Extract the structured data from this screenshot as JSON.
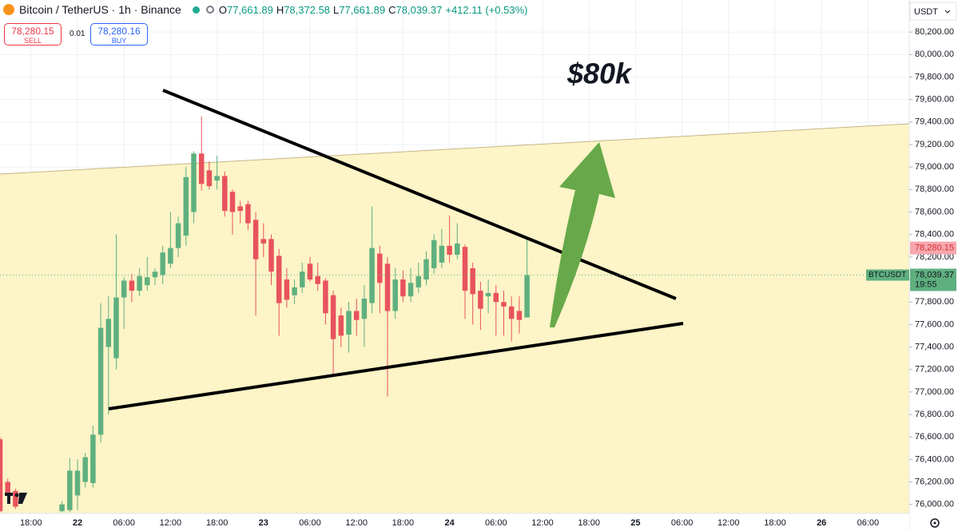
{
  "chart_data": {
    "type": "candlestick",
    "title": "Bitcoin / TetherUS · 1h · Binance",
    "ohlc": [
      {
        "key": "O",
        "value": "77,661.89"
      },
      {
        "key": "H",
        "value": "78,372.58"
      },
      {
        "key": "L",
        "value": "77,661.89"
      },
      {
        "key": "C",
        "value": "78,039.37"
      }
    ],
    "change": "+412.11 (+0.53%)",
    "sell": {
      "price": "78,280.15",
      "label": "SELL"
    },
    "spread": "0.01",
    "buy": {
      "price": "78,280.16",
      "label": "BUY"
    },
    "currency": "USDT",
    "annotation": "$80k",
    "ask_line": {
      "value": 78280.15,
      "label": "78,280.15"
    },
    "last_price": {
      "symbol": "BTCUSDT",
      "label": "78,039.37",
      "countdown": "19:55"
    },
    "up_color": "#5fb07f",
    "down_color": "#e8535d",
    "grid": true,
    "xlim": [
      -10,
      107.32
    ],
    "xticks": [
      {
        "value": -6,
        "label": "18:00"
      },
      {
        "value": 0,
        "label": "22"
      },
      {
        "value": 6,
        "label": "06:00"
      },
      {
        "value": 12,
        "label": "12:00"
      },
      {
        "value": 18,
        "label": "18:00"
      },
      {
        "value": 24,
        "label": "23"
      },
      {
        "value": 30,
        "label": "06:00"
      },
      {
        "value": 36,
        "label": "12:00"
      },
      {
        "value": 42,
        "label": "18:00"
      },
      {
        "value": 48,
        "label": "24"
      },
      {
        "value": 54,
        "label": "06:00"
      },
      {
        "value": 60,
        "label": "12:00"
      },
      {
        "value": 66,
        "label": "18:00"
      },
      {
        "value": 72,
        "label": "25"
      },
      {
        "value": 78,
        "label": "06:00"
      },
      {
        "value": 84,
        "label": "12:00"
      },
      {
        "value": 90,
        "label": "18:00"
      },
      {
        "value": 96,
        "label": "26"
      },
      {
        "value": 102,
        "label": "06:00"
      }
    ],
    "ylim": [
      75920,
      80485
    ],
    "yticks": [
      {
        "value": 76000,
        "label": "76,000.00"
      },
      {
        "value": 76200,
        "label": "76,200.00"
      },
      {
        "value": 76400,
        "label": "76,400.00"
      },
      {
        "value": 76600,
        "label": "76,600.00"
      },
      {
        "value": 76800,
        "label": "76,800.00"
      },
      {
        "value": 77000,
        "label": "77,000.00"
      },
      {
        "value": 77200,
        "label": "77,200.00"
      },
      {
        "value": 77400,
        "label": "77,400.00"
      },
      {
        "value": 77600,
        "label": "77,600.00"
      },
      {
        "value": 77800,
        "label": "77,800.00"
      },
      {
        "value": 78000,
        "label": "78,000.00"
      },
      {
        "value": 78200,
        "label": "78,200.00"
      },
      {
        "value": 78400,
        "label": "78,400.00"
      },
      {
        "value": 78600,
        "label": "78,600.00"
      },
      {
        "value": 78800,
        "label": "78,800.00"
      },
      {
        "value": 79000,
        "label": "79,000.00"
      },
      {
        "value": 79200,
        "label": "79,200.00"
      },
      {
        "value": 79400,
        "label": "79,400.00"
      },
      {
        "value": 79600,
        "label": "79,600.00"
      },
      {
        "value": 79800,
        "label": "79,800.00"
      },
      {
        "value": 80000,
        "label": "80,000.00"
      },
      {
        "value": 80200,
        "label": "80,200.00"
      }
    ],
    "x": [
      -10,
      -9,
      -8,
      -2,
      -1,
      0,
      1,
      2,
      3,
      4,
      5,
      6,
      7,
      8,
      9,
      10,
      11,
      12,
      13,
      14,
      15,
      16,
      17,
      18,
      19,
      20,
      21,
      22,
      23,
      24,
      25,
      26,
      27,
      28,
      29,
      30,
      31,
      32,
      33,
      34,
      35,
      36,
      37,
      38,
      39,
      40,
      41,
      42,
      43,
      44,
      45,
      46,
      47,
      48,
      49,
      50,
      51,
      52,
      53,
      54,
      55,
      56,
      57,
      58
    ],
    "open": [
      76580,
      76200,
      76120,
      75940,
      75950,
      76080,
      76200,
      76190,
      76620,
      77400,
      77300,
      77840,
      77990,
      77900,
      77950,
      78020,
      78040,
      78140,
      78280,
      78390,
      78600,
      79120,
      78970,
      78880,
      78920,
      78780,
      78650,
      78670,
      78530,
      78360,
      78360,
      78210,
      78000,
      77860,
      77930,
      78140,
      78030,
      77990,
      77860,
      77680,
      77510,
      77720,
      77650,
      77790,
      78230,
      78140,
      77720,
      78000,
      77850,
      77930,
      78000,
      78100,
      78150,
      78300,
      78220,
      78290,
      78100,
      77900,
      77850,
      77880,
      77800,
      77760,
      77720,
      77661.89
    ],
    "high": [
      76600,
      76230,
      76140,
      76030,
      76410,
      76400,
      76460,
      76700,
      77790,
      77850,
      78400,
      78020,
      78050,
      78100,
      78200,
      78100,
      78300,
      78600,
      78560,
      79000,
      79140,
      79450,
      79050,
      79100,
      78960,
      78800,
      78700,
      78700,
      78600,
      78500,
      78400,
      78270,
      78100,
      78000,
      78150,
      78200,
      78150,
      78010,
      77900,
      77750,
      77800,
      77830,
      77950,
      78650,
      78300,
      78200,
      78100,
      78080,
      78100,
      78150,
      78250,
      78400,
      78450,
      78570,
      78500,
      78310,
      78150,
      77980,
      78000,
      77950,
      77900,
      77850,
      77850,
      78372.58
    ],
    "low": [
      75930,
      76060,
      75960,
      75930,
      75930,
      75950,
      76150,
      76150,
      76550,
      76800,
      77200,
      77560,
      77800,
      77850,
      77900,
      77950,
      77960,
      78100,
      78200,
      78300,
      78500,
      78790,
      78800,
      78800,
      78560,
      78400,
      78500,
      78440,
      77680,
      78200,
      77950,
      77500,
      77750,
      77780,
      77880,
      77980,
      77900,
      77600,
      77150,
      77400,
      77350,
      77500,
      77400,
      77700,
      77700,
      76960,
      77650,
      77800,
      77800,
      77880,
      77950,
      78050,
      78100,
      78150,
      78180,
      77650,
      77600,
      77550,
      77700,
      77500,
      77500,
      77450,
      77520,
      77661.89
    ],
    "close": [
      75940,
      76090,
      75980,
      76000,
      76300,
      76300,
      76420,
      76620,
      77570,
      77650,
      77840,
      77990,
      77900,
      78030,
      78020,
      78070,
      78240,
      78280,
      78500,
      78910,
      79120,
      78850,
      78830,
      78920,
      78610,
      78600,
      78610,
      78500,
      78180,
      78320,
      78070,
      77790,
      77820,
      77930,
      78070,
      78000,
      77960,
      77700,
      77470,
      77500,
      77720,
      77640,
      77830,
      78280,
      77970,
      77720,
      78000,
      77850,
      77970,
      78030,
      78180,
      78350,
      78300,
      78220,
      78320,
      77900,
      77870,
      77740,
      77880,
      77800,
      77760,
      77650,
      77640,
      78039.37
    ]
  }
}
